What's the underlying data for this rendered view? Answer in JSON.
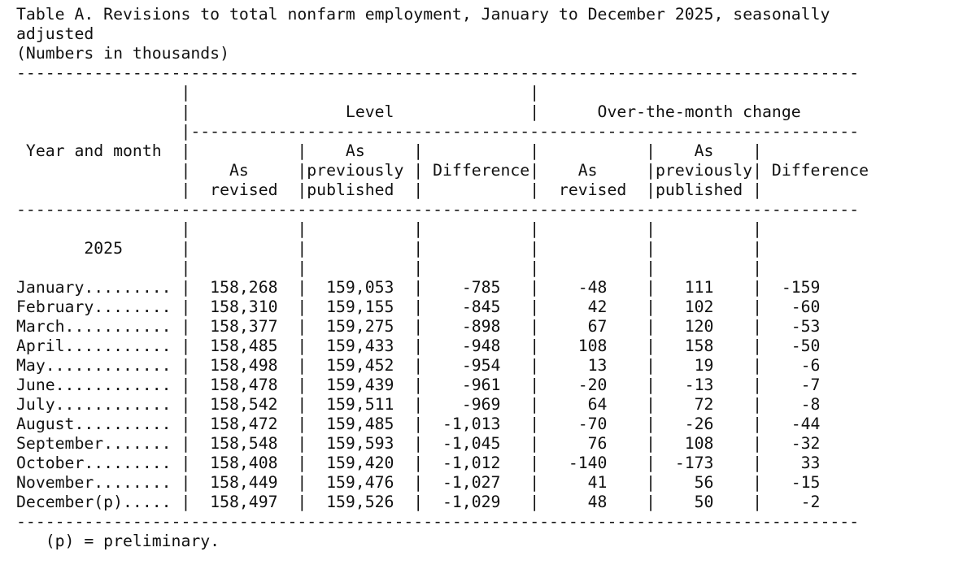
{
  "title": {
    "line1": "Table A. Revisions to total nonfarm employment, January to December 2025, seasonally",
    "line2": "adjusted",
    "line3": "(Numbers in thousands)"
  },
  "header": {
    "year_and_month": "Year and month",
    "level": "Level",
    "over_the_month_change": "Over-the-month change",
    "as_word": "As",
    "revised": "revised",
    "previously": "previously",
    "published": "published",
    "difference": "Difference"
  },
  "year": "2025",
  "rows": [
    {
      "month": "January",
      "level_revised": "158,268",
      "level_previous": "159,053",
      "level_diff": "-785",
      "otm_revised": "-48",
      "otm_previous": "111",
      "otm_diff": "-159"
    },
    {
      "month": "February",
      "level_revised": "158,310",
      "level_previous": "159,155",
      "level_diff": "-845",
      "otm_revised": "42",
      "otm_previous": "102",
      "otm_diff": "-60"
    },
    {
      "month": "March",
      "level_revised": "158,377",
      "level_previous": "159,275",
      "level_diff": "-898",
      "otm_revised": "67",
      "otm_previous": "120",
      "otm_diff": "-53"
    },
    {
      "month": "April",
      "level_revised": "158,485",
      "level_previous": "159,433",
      "level_diff": "-948",
      "otm_revised": "108",
      "otm_previous": "158",
      "otm_diff": "-50"
    },
    {
      "month": "May",
      "level_revised": "158,498",
      "level_previous": "159,452",
      "level_diff": "-954",
      "otm_revised": "13",
      "otm_previous": "19",
      "otm_diff": "-6"
    },
    {
      "month": "June",
      "level_revised": "158,478",
      "level_previous": "159,439",
      "level_diff": "-961",
      "otm_revised": "-20",
      "otm_previous": "-13",
      "otm_diff": "-7"
    },
    {
      "month": "July",
      "level_revised": "158,542",
      "level_previous": "159,511",
      "level_diff": "-969",
      "otm_revised": "64",
      "otm_previous": "72",
      "otm_diff": "-8"
    },
    {
      "month": "August",
      "level_revised": "158,472",
      "level_previous": "159,485",
      "level_diff": "-1,013",
      "otm_revised": "-70",
      "otm_previous": "-26",
      "otm_diff": "-44"
    },
    {
      "month": "September",
      "level_revised": "158,548",
      "level_previous": "159,593",
      "level_diff": "-1,045",
      "otm_revised": "76",
      "otm_previous": "108",
      "otm_diff": "-32"
    },
    {
      "month": "October",
      "level_revised": "158,408",
      "level_previous": "159,420",
      "level_diff": "-1,012",
      "otm_revised": "-140",
      "otm_previous": "-173",
      "otm_diff": "33"
    },
    {
      "month": "November",
      "level_revised": "158,449",
      "level_previous": "159,476",
      "level_diff": "-1,027",
      "otm_revised": "41",
      "otm_previous": "56",
      "otm_diff": "-15"
    },
    {
      "month": "December(p)",
      "level_revised": "158,497",
      "level_previous": "159,526",
      "level_diff": "-1,029",
      "otm_revised": "48",
      "otm_previous": "50",
      "otm_diff": "-2"
    }
  ],
  "footnote": "(p) = preliminary."
}
